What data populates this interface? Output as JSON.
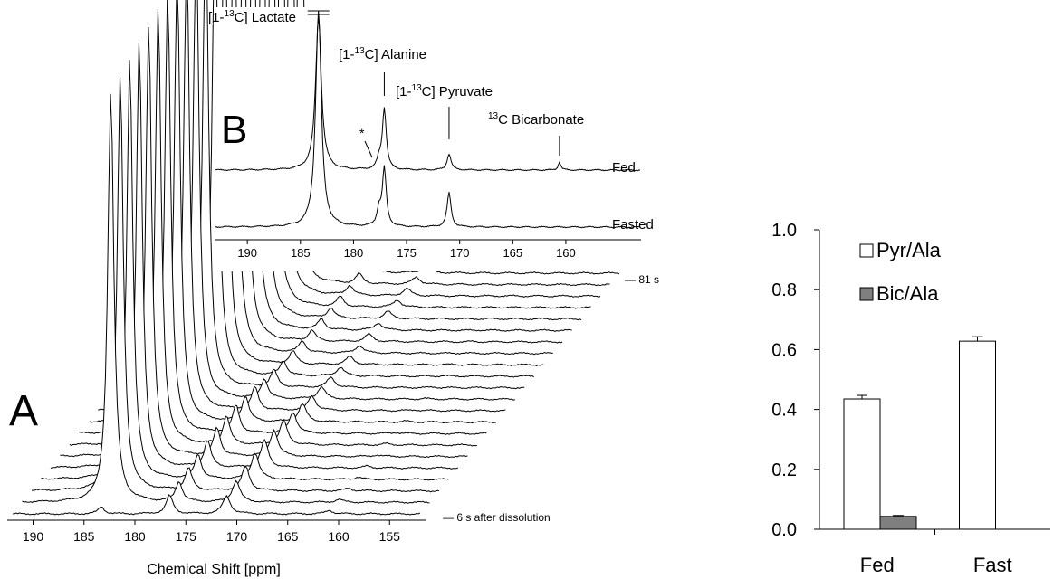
{
  "panel_a": {
    "letter": "A",
    "x_label": "Chemical Shift [ppm]",
    "x_ticks": [
      "190",
      "185",
      "180",
      "175",
      "170",
      "165",
      "160",
      "155"
    ],
    "first_trace_label": "— 6 s after dissolution",
    "last_trace_label": "— 81 s"
  },
  "panel_b": {
    "letter": "B",
    "x_ticks": [
      "190",
      "185",
      "180",
      "175",
      "170",
      "165",
      "160"
    ],
    "asterisk": "*",
    "peak_labels": [
      {
        "pre": "[1-",
        "sup": "13",
        "post": "C] Lactate"
      },
      {
        "pre": "[1-",
        "sup": "13",
        "post": "C] Alanine"
      },
      {
        "pre": "[1-",
        "sup": "13",
        "post": "C] Pyruvate"
      },
      {
        "pre": "",
        "sup": "13",
        "post": "C Bicarbonate"
      }
    ],
    "trace_labels": [
      "Fed",
      "Fasted"
    ]
  },
  "chart_data": [
    {
      "type": "line",
      "panel": "A",
      "xlabel": "Chemical Shift [ppm]",
      "xlim": [
        192,
        152
      ],
      "x_reversed": true,
      "traces": 22,
      "time_range_s": [
        6,
        81
      ],
      "peaks_ppm": {
        "lactate": 183.3,
        "alanine": 176.6,
        "pyruvate": 171.0,
        "bicarbonate": 160.9
      }
    },
    {
      "type": "line",
      "panel": "B",
      "xlim": [
        193,
        153
      ],
      "x_reversed": true,
      "series": [
        {
          "name": "Fed",
          "peaks": [
            {
              "label": "[1-13C] Lactate",
              "ppm": 183.3
            },
            {
              "label": "*",
              "ppm": 177.6
            },
            {
              "label": "[1-13C] Alanine",
              "ppm": 177.1
            },
            {
              "label": "[1-13C] Pyruvate",
              "ppm": 171.0
            },
            {
              "label": "13C Bicarbonate",
              "ppm": 160.6
            }
          ]
        },
        {
          "name": "Fasted",
          "peaks": [
            {
              "label": "[1-13C] Lactate",
              "ppm": 183.3
            },
            {
              "label": "*",
              "ppm": 177.6
            },
            {
              "label": "[1-13C] Alanine",
              "ppm": 177.1
            },
            {
              "label": "[1-13C] Pyruvate",
              "ppm": 171.0
            }
          ]
        }
      ]
    },
    {
      "type": "bar",
      "panel": "C",
      "categories": [
        "Fed",
        "Fast"
      ],
      "series": [
        {
          "name": "Pyr/Ala",
          "color": "#ffffff",
          "values": [
            0.435,
            0.628
          ],
          "errors": [
            0.012,
            0.015
          ]
        },
        {
          "name": "Bic/Ala",
          "color": "#7f7f7f",
          "values": [
            0.043,
            0
          ],
          "errors": [
            0.003,
            0
          ]
        }
      ],
      "ylim": [
        0,
        1.0
      ],
      "yticks": [
        "0.0",
        "0.2",
        "0.4",
        "0.6",
        "0.8",
        "1.0"
      ],
      "legend": "top-left"
    }
  ]
}
